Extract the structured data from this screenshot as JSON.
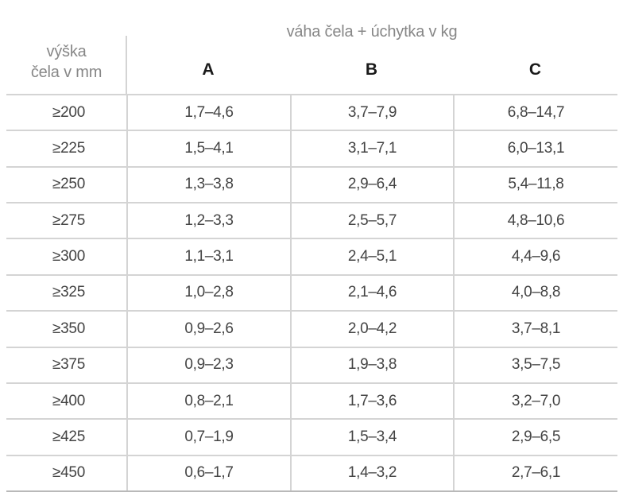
{
  "table": {
    "group_header": "váha čela + úchytka v kg",
    "row_header": {
      "line1": "výška",
      "line2": "čela v mm"
    },
    "columns": [
      "A",
      "B",
      "C"
    ],
    "rows": [
      {
        "label": "≥200",
        "values": [
          "1,7–4,6",
          "3,7–7,9",
          "6,8–14,7"
        ]
      },
      {
        "label": "≥225",
        "values": [
          "1,5–4,1",
          "3,1–7,1",
          "6,0–13,1"
        ]
      },
      {
        "label": "≥250",
        "values": [
          "1,3–3,8",
          "2,9–6,4",
          "5,4–11,8"
        ]
      },
      {
        "label": "≥275",
        "values": [
          "1,2–3,3",
          "2,5–5,7",
          "4,8–10,6"
        ]
      },
      {
        "label": "≥300",
        "values": [
          "1,1–3,1",
          "2,4–5,1",
          "4,4–9,6"
        ]
      },
      {
        "label": "≥325",
        "values": [
          "1,0–2,8",
          "2,1–4,6",
          "4,0–8,8"
        ]
      },
      {
        "label": "≥350",
        "values": [
          "0,9–2,6",
          "2,0–4,2",
          "3,7–8,1"
        ]
      },
      {
        "label": "≥375",
        "values": [
          "0,9–2,3",
          "1,9–3,8",
          "3,5–7,5"
        ]
      },
      {
        "label": "≥400",
        "values": [
          "0,8–2,1",
          "1,7–3,6",
          "3,2–7,0"
        ]
      },
      {
        "label": "≥425",
        "values": [
          "0,7–1,9",
          "1,5–3,4",
          "2,9–6,5"
        ]
      },
      {
        "label": "≥450",
        "values": [
          "0,6–1,7",
          "1,4–3,2",
          "2,7–6,1"
        ]
      }
    ],
    "colors": {
      "grid_line": "#d4d4d4",
      "bottom_line": "#b9b9b9",
      "muted_text": "#878787",
      "column_letter_text": "#1a1a1a",
      "cell_text": "#434343",
      "background": "#ffffff"
    }
  }
}
